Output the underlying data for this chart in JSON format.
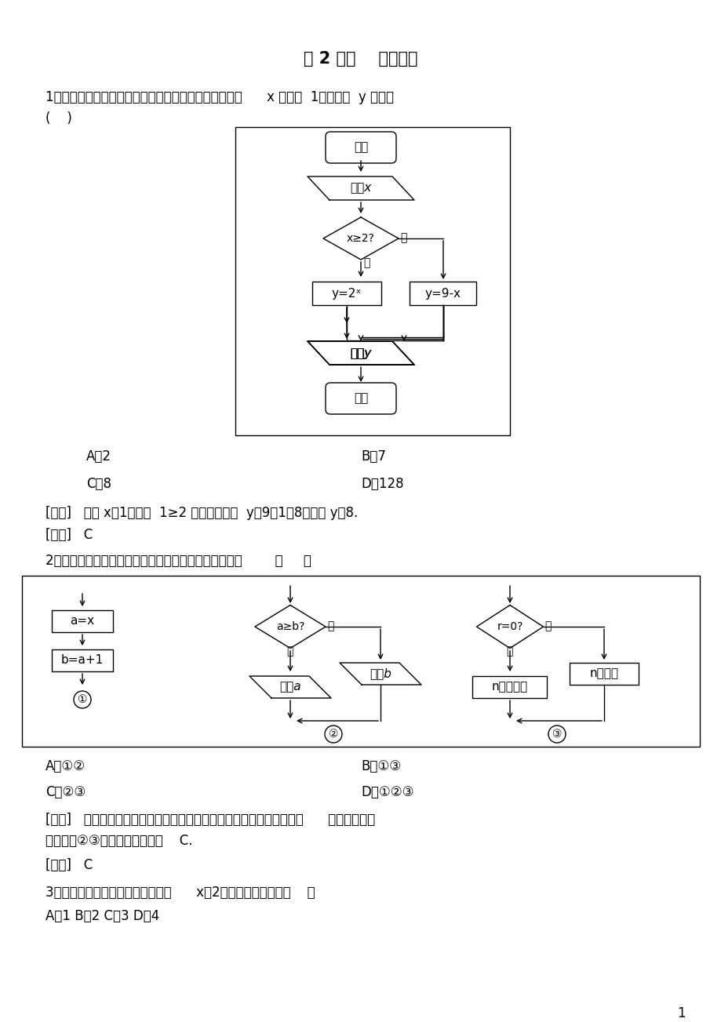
{
  "title": "第 2 课时    条件结构",
  "bg_color": "#ffffff",
  "q1_line1": "1．阅读如图所示的程序框图，运行相应的程序．若输入      x 的值为  1，则输出  y 的值为",
  "q1_line2": "(    )",
  "q1_optA": "A．2",
  "q1_optB": "B．7",
  "q1_optC": "C．8",
  "q1_optD": "D．128",
  "q1_analysis": "[解析]   输入 x＝1，因为  1≥2 不成立，所以  y＝9－1＝8，输出 y＝8.",
  "q1_answer": "[答案]   C",
  "q2_line1": "2．如图是算法程序框图的一部分，其中含条件结构的是        （     ）",
  "q2_optA": "A．①②",
  "q2_optB": "B．①③",
  "q2_optC": "C．②③",
  "q2_optD": "D．①②③",
  "q2_analysis1": "[解析]   条件结构是处理逻辑判断并根据判别结果进行不同处理的结构，      由算法程序框",
  "q2_analysis2": "图可知，②③含条件结构，故选    C.",
  "q2_answer": "[答案]   C",
  "q3_line1": "3．如图所示的程序框图中，若输入      x＝2，则输出的结果是（    ）",
  "q3_opts": "A．1 B．2 C．3 D．4",
  "page_num": "1",
  "fc1_start": "开始",
  "fc1_input": "输入x",
  "fc1_cond": "x≥2?",
  "fc1_yes": "是",
  "fc1_no": "否",
  "fc1_ybox": "y=2ˣ",
  "fc1_nbox": "y=9-x",
  "fc1_output": "输出y",
  "fc1_end": "结束",
  "s1_box1": "a=x",
  "s1_box2": "b=a+1",
  "s2_cond": "a≥b?",
  "s2_yes": "是",
  "s2_no": "否",
  "s2_out1": "输出a",
  "s2_out2": "输出b",
  "s3_cond": "r=0?",
  "s3_yes": "是",
  "s3_no": "否",
  "s3_box1": "n是偶数",
  "s3_box2": "n不是偶数"
}
